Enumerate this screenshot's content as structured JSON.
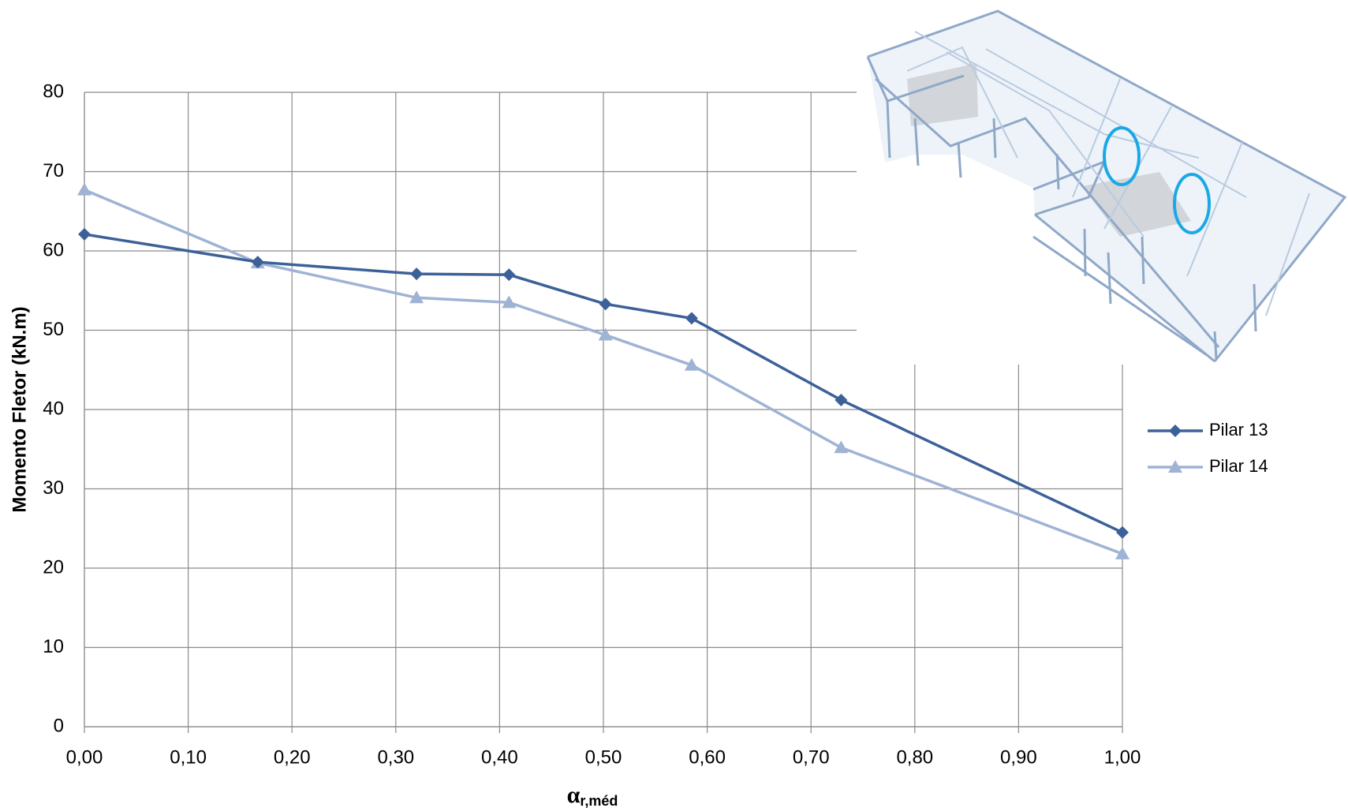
{
  "chart_data": {
    "type": "line",
    "y_label": "Momento Fletor (kN.m)",
    "x_label": "α",
    "x_label_sub": "r,méd",
    "xlim": [
      0,
      1
    ],
    "xticks": [
      {
        "value": 0,
        "label": "0,00"
      },
      {
        "value": 0.1,
        "label": "0,10"
      },
      {
        "value": 0.2,
        "label": "0,20"
      },
      {
        "value": 0.3,
        "label": "0,30"
      },
      {
        "value": 0.4,
        "label": "0,40"
      },
      {
        "value": 0.5,
        "label": "0,50"
      },
      {
        "value": 0.6,
        "label": "0,60"
      },
      {
        "value": 0.7,
        "label": "0,70"
      },
      {
        "value": 0.8,
        "label": "0,80"
      },
      {
        "value": 0.9,
        "label": "0,90"
      },
      {
        "value": 1,
        "label": "1,00"
      }
    ],
    "ylim": [
      0,
      80
    ],
    "yticks": [
      0,
      10,
      20,
      30,
      40,
      50,
      60,
      70,
      80
    ],
    "grid": true,
    "legend": "right",
    "x": [
      0,
      0.167,
      0.32,
      0.409,
      0.502,
      0.585,
      0.729,
      1.0
    ],
    "series": [
      {
        "name": "Pilar 13",
        "color": "#3c6199",
        "marker": "diamond",
        "values": [
          62.1,
          58.6,
          57.1,
          57.0,
          53.3,
          51.5,
          41.2,
          24.5
        ]
      },
      {
        "name": "Pilar 14",
        "color": "#9fb3d4",
        "marker": "triangle",
        "values": [
          67.7,
          58.5,
          54.1,
          53.5,
          49.4,
          45.6,
          35.2,
          21.8
        ]
      }
    ]
  }
}
